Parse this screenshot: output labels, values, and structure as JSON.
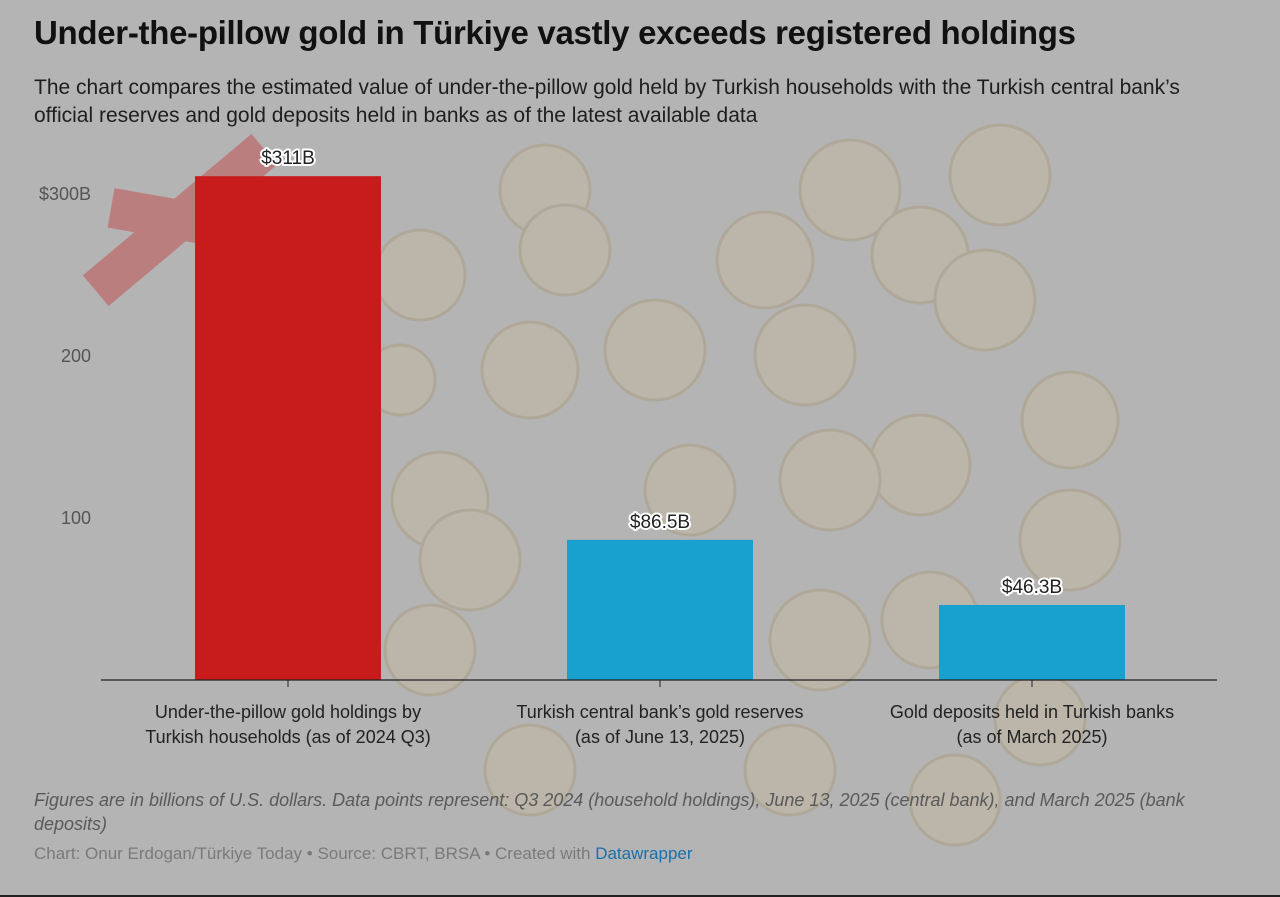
{
  "header": {
    "title": "Under-the-pillow gold in Türkiye vastly exceeds registered holdings",
    "subtitle": "The chart compares the estimated value of under-the-pillow gold held by Turkish households with the Turkish central bank’s official reserves and gold deposits held in banks as of the latest available data"
  },
  "chart_data": {
    "type": "bar",
    "categories": [
      [
        "Under-the-pillow gold holdings by",
        "Turkish households (as of 2024 Q3)"
      ],
      [
        "Turkish central bank’s gold reserves",
        "(as of June 13, 2025)"
      ],
      [
        "Gold deposits held in Turkish banks",
        "(as of March 2025)"
      ]
    ],
    "values": [
      311,
      86.5,
      46.3
    ],
    "data_labels": [
      "$311B",
      "$86.5B",
      "$46.3B"
    ],
    "colors": [
      "#c81c1c",
      "#18a0cf",
      "#18a0cf"
    ],
    "y_ticks": [
      100,
      200,
      300
    ],
    "y_tick_labels": [
      "100",
      "200",
      "$300B"
    ],
    "ylim": [
      0,
      311
    ],
    "grid": false
  },
  "footer": {
    "notes": "Figures are in billions of U.S. dollars. Data points represent: Q3 2024 (household holdings), June 13, 2025 (central bank), and March 2025 (bank deposits)",
    "byline_prefix": "Chart: Onur Erdogan/Türkiye Today • Source: CBRT, BRSA • Created with ",
    "byline_link": "Datawrapper"
  }
}
